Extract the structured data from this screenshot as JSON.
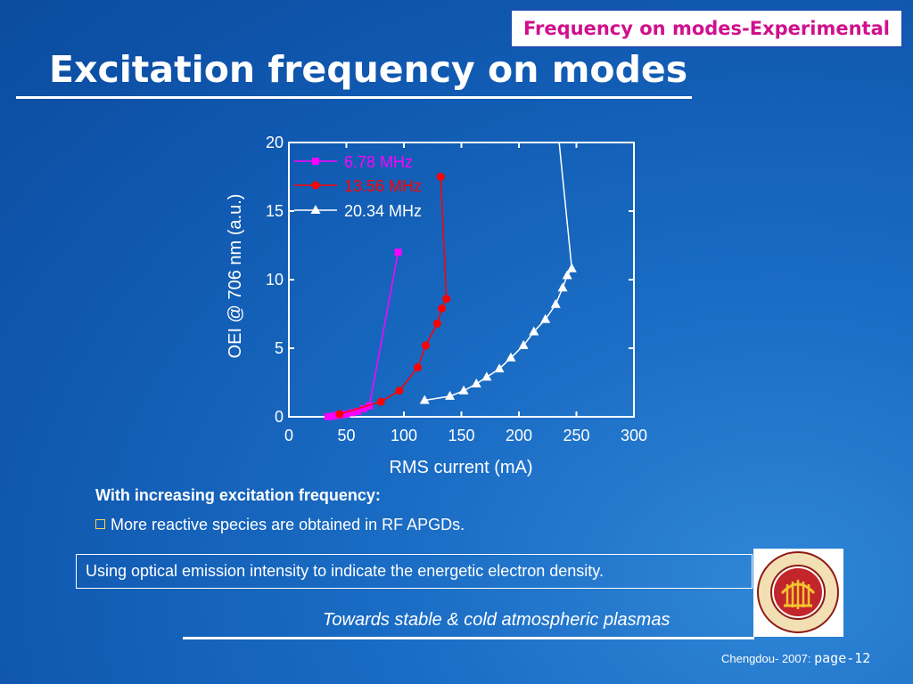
{
  "slide": {
    "section_tag": "Frequency on modes-Experimental",
    "title": "Excitation frequency on modes",
    "bullet_heading": "With increasing excitation frequency:",
    "bullet_item": "More reactive species are obtained in RF APGDs.",
    "note": "Using optical emission intensity to indicate the energetic electron density.",
    "tagline": "Towards stable & cold atmospheric plasmas",
    "footer_place": "Chengdou- 2007:",
    "footer_page": "page-12",
    "logo_icon": "university-seal-icon"
  },
  "chart_data": {
    "type": "line",
    "title": "",
    "xlabel": "RMS current (mA)",
    "ylabel": "OEI @ 706 nm (a.u.)",
    "xlim": [
      0,
      300
    ],
    "ylim": [
      0,
      20
    ],
    "xticks": [
      "0",
      "50",
      "100",
      "150",
      "200",
      "250",
      "300"
    ],
    "yticks": [
      "0",
      "5",
      "10",
      "15",
      "20"
    ],
    "legend_position": "top-left",
    "series": [
      {
        "name": "6.78 MHz",
        "color": "#ff00ff",
        "marker": "square",
        "x": [
          34,
          38,
          42,
          46,
          50,
          55,
          60,
          65,
          70,
          95
        ],
        "y": [
          0.0,
          0.05,
          0.1,
          0.15,
          0.2,
          0.3,
          0.4,
          0.6,
          0.8,
          12.0
        ]
      },
      {
        "name": "13.56 MHz",
        "color": "#ff0000",
        "marker": "circle",
        "x": [
          44,
          80,
          96,
          112,
          119,
          129,
          133,
          137,
          132
        ],
        "y": [
          0.2,
          1.1,
          1.9,
          3.6,
          5.2,
          6.8,
          7.9,
          8.6,
          17.5
        ]
      },
      {
        "name": "20.34 MHz",
        "color": "#ffffff",
        "marker": "triangle",
        "x": [
          118,
          140,
          152,
          163,
          172,
          183,
          193,
          204,
          213,
          223,
          232,
          238,
          242,
          246,
          235
        ],
        "y": [
          1.2,
          1.5,
          1.9,
          2.4,
          2.9,
          3.5,
          4.3,
          5.2,
          6.2,
          7.1,
          8.2,
          9.4,
          10.3,
          10.8,
          20.0
        ]
      }
    ]
  }
}
